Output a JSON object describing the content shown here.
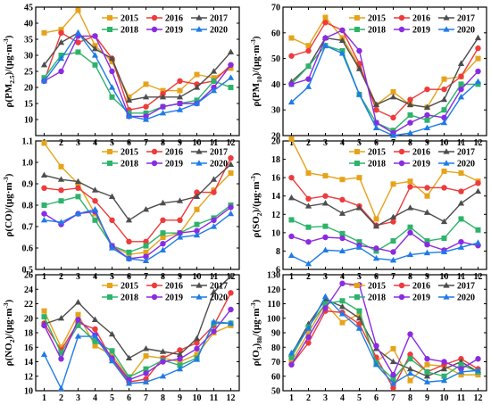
{
  "chart_data": [
    {
      "type": "line",
      "ylabel": "ρ(PM2.5)/(μg·m⁻³)",
      "ylabel_main": "ρ(PM",
      "ylabel_sub": "2.5",
      "ylabel_unit": ")/(μg·m",
      "ylabel_exp": "-3",
      "ylabel_end": ")",
      "x": [
        1,
        2,
        3,
        4,
        5,
        6,
        7,
        8,
        9,
        10,
        11,
        12
      ],
      "ylim": [
        5,
        45
      ],
      "yticks": [
        10,
        15,
        20,
        25,
        30,
        35,
        40,
        45
      ],
      "series": [
        {
          "name": "2015",
          "values": [
            37,
            38,
            44,
            33,
            28,
            17,
            21,
            19,
            19,
            24,
            23,
            26
          ]
        },
        {
          "name": "2016",
          "values": [
            22,
            37,
            34,
            36,
            29,
            13,
            14,
            18,
            22,
            21,
            22,
            27
          ]
        },
        {
          "name": "2017",
          "values": [
            27,
            34,
            37,
            32,
            29,
            16,
            17,
            17,
            17,
            20,
            25,
            31
          ]
        },
        {
          "name": "2018",
          "values": [
            23,
            30,
            31,
            27,
            17,
            12,
            12,
            14,
            15,
            16,
            22,
            20
          ]
        },
        {
          "name": "2019",
          "values": [
            22,
            25,
            36,
            36,
            25,
            11,
            11,
            14,
            15,
            15,
            20,
            27
          ]
        },
        {
          "name": "2020",
          "values": [
            22,
            29,
            37,
            30,
            20,
            11,
            10,
            12,
            13,
            15,
            19,
            23
          ]
        }
      ]
    },
    {
      "type": "line",
      "ylabel": "ρ(PM10)/(μg·m⁻³)",
      "ylabel_main": "ρ(PM",
      "ylabel_sub": "10",
      "ylabel_unit": ")/(μg·m",
      "ylabel_exp": "-3",
      "ylabel_end": ")",
      "x": [
        1,
        2,
        3,
        4,
        5,
        6,
        7,
        8,
        9,
        10,
        11,
        12
      ],
      "ylim": [
        20,
        70
      ],
      "yticks": [
        20,
        30,
        40,
        50,
        60,
        70
      ],
      "series": [
        {
          "name": "2015",
          "values": [
            58,
            55,
            66,
            58,
            47,
            32,
            37,
            32,
            31,
            42,
            43,
            50
          ]
        },
        {
          "name": "2016",
          "values": [
            51,
            53,
            64,
            61,
            48,
            30,
            27,
            34,
            38,
            38,
            43,
            54
          ]
        },
        {
          "name": "2017",
          "values": [
            41,
            47,
            58,
            57,
            46,
            32,
            35,
            32,
            31,
            34,
            48,
            58
          ]
        },
        {
          "name": "2018",
          "values": [
            40,
            47,
            55,
            53,
            36,
            25,
            22,
            28,
            26,
            30,
            40,
            40
          ]
        },
        {
          "name": "2019",
          "values": [
            40,
            42,
            58,
            61,
            53,
            25,
            21,
            25,
            28,
            27,
            38,
            45
          ]
        },
        {
          "name": "2020",
          "values": [
            33,
            39,
            55,
            52,
            36,
            23,
            20,
            21,
            23,
            25,
            35,
            41
          ]
        }
      ]
    },
    {
      "type": "line",
      "ylabel": "ρ(CO)/(μg·m⁻³)",
      "ylabel_main": "ρ(CO",
      "ylabel_sub": "",
      "ylabel_unit": ")/(μg·m",
      "ylabel_exp": "-3",
      "ylabel_end": ")",
      "x": [
        1,
        2,
        3,
        4,
        5,
        6,
        7,
        8,
        9,
        10,
        11,
        12
      ],
      "ylim": [
        0.5,
        1.1
      ],
      "yticks": [
        0.5,
        0.6,
        0.7,
        0.8,
        0.9,
        1.0,
        1.1
      ],
      "ytick_decimals": 1,
      "series": [
        {
          "name": "2015",
          "values": [
            1.09,
            0.98,
            0.9,
            0.76,
            0.61,
            0.57,
            0.58,
            0.65,
            0.67,
            0.78,
            0.87,
            0.95
          ]
        },
        {
          "name": "2016",
          "values": [
            0.88,
            0.87,
            0.88,
            0.82,
            0.73,
            0.63,
            0.63,
            0.73,
            0.73,
            0.86,
            0.86,
            1.02
          ]
        },
        {
          "name": "2017",
          "values": [
            0.94,
            0.92,
            0.91,
            0.87,
            0.84,
            0.73,
            0.78,
            0.81,
            0.82,
            0.84,
            0.92,
            0.99
          ]
        },
        {
          "name": "2018",
          "values": [
            0.8,
            0.82,
            0.84,
            0.73,
            0.61,
            0.58,
            0.61,
            0.67,
            0.67,
            0.71,
            0.74,
            0.8
          ]
        },
        {
          "name": "2019",
          "values": [
            0.76,
            0.71,
            0.76,
            0.77,
            0.61,
            0.55,
            0.56,
            0.62,
            0.67,
            0.68,
            0.73,
            0.79
          ]
        },
        {
          "name": "2020",
          "values": [
            0.73,
            0.72,
            0.76,
            0.78,
            0.6,
            0.55,
            0.54,
            0.59,
            0.65,
            0.66,
            0.7,
            0.76
          ]
        }
      ]
    },
    {
      "type": "line",
      "ylabel": "ρ(SO2)/(μg·m⁻³)",
      "ylabel_main": "ρ(SO",
      "ylabel_sub": "2",
      "ylabel_unit": ")/(μg·m",
      "ylabel_exp": "-3",
      "ylabel_end": ")",
      "x": [
        1,
        2,
        3,
        4,
        5,
        6,
        7,
        8,
        9,
        10,
        11,
        12
      ],
      "ylim": [
        6,
        20
      ],
      "yticks": [
        6,
        8,
        10,
        12,
        14,
        16,
        18,
        20
      ],
      "series": [
        {
          "name": "2015",
          "values": [
            20.2,
            16.5,
            16.2,
            15.8,
            16.0,
            11.5,
            15.3,
            15.6,
            14.0,
            16.7,
            16.5,
            15.6
          ]
        },
        {
          "name": "2016",
          "values": [
            16.0,
            13.7,
            14.0,
            13.6,
            12.9,
            10.8,
            11.2,
            15.0,
            14.9,
            14.9,
            14.5,
            15.4
          ]
        },
        {
          "name": "2017",
          "values": [
            13.8,
            12.9,
            13.2,
            12.1,
            12.7,
            10.7,
            11.7,
            12.7,
            12.2,
            11.2,
            13.2,
            14.5
          ]
        },
        {
          "name": "2018",
          "values": [
            11.4,
            10.6,
            10.7,
            9.9,
            9.0,
            8.0,
            9.1,
            10.6,
            9.1,
            9.4,
            11.5,
            10.3
          ]
        },
        {
          "name": "2019",
          "values": [
            9.6,
            9.0,
            9.5,
            9.4,
            8.6,
            8.3,
            7.9,
            10.0,
            8.7,
            8.1,
            9.0,
            8.6
          ]
        },
        {
          "name": "2020",
          "values": [
            7.5,
            6.6,
            8.1,
            8.0,
            8.4,
            7.2,
            7.0,
            7.6,
            7.8,
            7.9,
            8.4,
            8.9
          ]
        }
      ]
    },
    {
      "type": "line",
      "ylabel": "ρ(NO2)/(μg·m⁻³)",
      "ylabel_main": "ρ(NO",
      "ylabel_sub": "2",
      "ylabel_unit": ")/(μg·m",
      "ylabel_exp": "-3",
      "ylabel_end": ")",
      "x": [
        1,
        2,
        3,
        4,
        5,
        6,
        7,
        8,
        9,
        10,
        11,
        12
      ],
      "ylim": [
        10,
        26
      ],
      "yticks": [
        10,
        12,
        14,
        16,
        18,
        20,
        22,
        24,
        26
      ],
      "series": [
        {
          "name": "2015",
          "values": [
            21.0,
            16.0,
            20.5,
            16.2,
            14.9,
            11.7,
            14.8,
            14.5,
            14.0,
            15.0,
            18.0,
            19.0
          ]
        },
        {
          "name": "2016",
          "values": [
            19.3,
            15.6,
            19.4,
            18.5,
            14.3,
            11.2,
            11.6,
            14.5,
            15.6,
            16.6,
            19.0,
            23.5
          ]
        },
        {
          "name": "2017",
          "values": [
            19.2,
            20.0,
            22.2,
            19.8,
            17.8,
            14.5,
            15.8,
            15.4,
            15.0,
            17.2,
            23.6,
            25.8
          ]
        },
        {
          "name": "2018",
          "values": [
            20.2,
            15.2,
            19.0,
            16.8,
            15.5,
            11.9,
            13.0,
            14.2,
            13.5,
            14.5,
            19.3,
            19.3
          ]
        },
        {
          "name": "2019",
          "values": [
            19.0,
            14.4,
            19.8,
            17.7,
            14.5,
            11.5,
            12.4,
            14.0,
            14.4,
            15.8,
            18.2,
            21.2
          ]
        },
        {
          "name": "2020",
          "values": [
            15.0,
            10.3,
            17.5,
            17.5,
            14.1,
            11.0,
            11.2,
            12.0,
            13.0,
            14.3,
            19.5,
            19.3
          ]
        }
      ]
    },
    {
      "type": "line",
      "ylabel": "ρ(O3)8h/(μg·m⁻³)",
      "ylabel_main": "ρ(O",
      "ylabel_sub": "3",
      "ylabel_unit": ")",
      "ylabel_sub2": "8h",
      "ylabel_tail": "/(μg·m",
      "ylabel_exp": "-3",
      "ylabel_end": ")",
      "x": [
        1,
        2,
        3,
        4,
        5,
        6,
        7,
        8,
        9,
        10,
        11,
        12
      ],
      "ylim": [
        50,
        130
      ],
      "yticks": [
        50,
        60,
        70,
        80,
        90,
        100,
        110,
        120,
        130
      ],
      "series": [
        {
          "name": "2015",
          "values": [
            70,
            90,
            110,
            97,
            103,
            70,
            79,
            57,
            68,
            67,
            61,
            61
          ]
        },
        {
          "name": "2016",
          "values": [
            68,
            83,
            105,
            104,
            96,
            73,
            52,
            75,
            63,
            68,
            72,
            65
          ]
        },
        {
          "name": "2017",
          "values": [
            75,
            96,
            113,
            108,
            100,
            79,
            70,
            65,
            60,
            65,
            70,
            63
          ]
        },
        {
          "name": "2018",
          "values": [
            73,
            94,
            110,
            112,
            105,
            69,
            58,
            72,
            63,
            60,
            68,
            63
          ]
        },
        {
          "name": "2019",
          "values": [
            68,
            87,
            107,
            124,
            123,
            81,
            61,
            89,
            72,
            70,
            65,
            72
          ]
        },
        {
          "name": "2020",
          "values": [
            76,
            93,
            115,
            103,
            93,
            68,
            55,
            62,
            56,
            57,
            63,
            64
          ]
        }
      ]
    }
  ],
  "colors": {
    "2015": "#e6a31a",
    "2016": "#ee3b3b",
    "2017": "#4d4d4d",
    "2018": "#2db36b",
    "2019": "#8a2be2",
    "2020": "#1e7be6"
  },
  "markers": {
    "2015": "square",
    "2016": "circle",
    "2017": "triangle",
    "2018": "square",
    "2019": "circle",
    "2020": "triangle"
  }
}
